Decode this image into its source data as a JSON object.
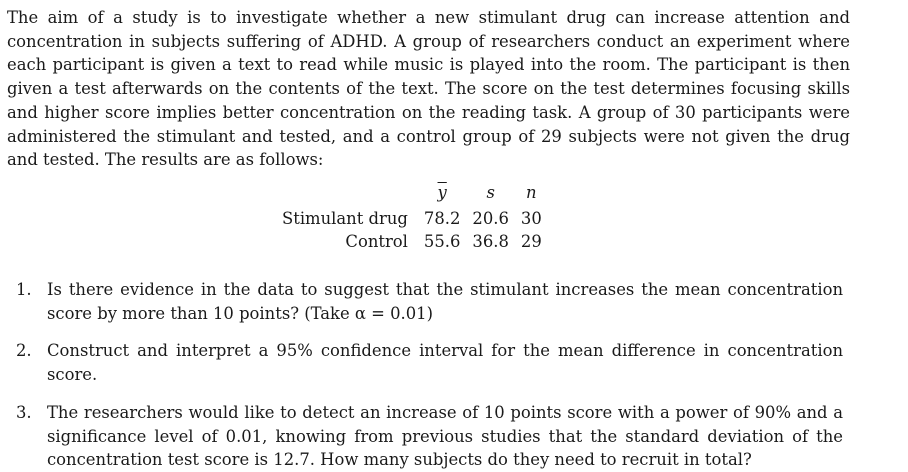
{
  "intro": "The aim of a study is to investigate whether a new stimulant drug can increase attention and concentration in subjects suffering of ADHD. A group of researchers conduct an experiment where each participant is given a text to read while music is played into the room. The participant is then given a test afterwards on the contents of the text. The score on the test determines focusing skills and higher score implies better concentration on the reading task. A group of 30 participants were administered the stimulant and tested, and a control group of 29 subjects were not given the drug and tested. The results are as follows:",
  "table": {
    "headers": [
      "y",
      "s",
      "n"
    ],
    "rows": [
      {
        "label": "Stimulant drug",
        "mean": "78.2",
        "sd": "20.6",
        "n": "30"
      },
      {
        "label": "Control",
        "mean": "55.6",
        "sd": "36.8",
        "n": "29"
      }
    ]
  },
  "questions": [
    {
      "num": "1.",
      "text": "Is there evidence in the data to suggest that the stimulant increases the mean concentration score by more than 10 points? (Take α = 0.01)"
    },
    {
      "num": "2.",
      "text": "Construct and interpret a 95% confidence interval for the mean difference in concentration score."
    },
    {
      "num": "3.",
      "text": "The researchers would like to detect an increase of 10 points score with a power of 90% and a significance level of 0.01, knowing from previous studies that the standard deviation of the concentration test score is 12.7. How many subjects do they need to recruit in total?"
    }
  ]
}
